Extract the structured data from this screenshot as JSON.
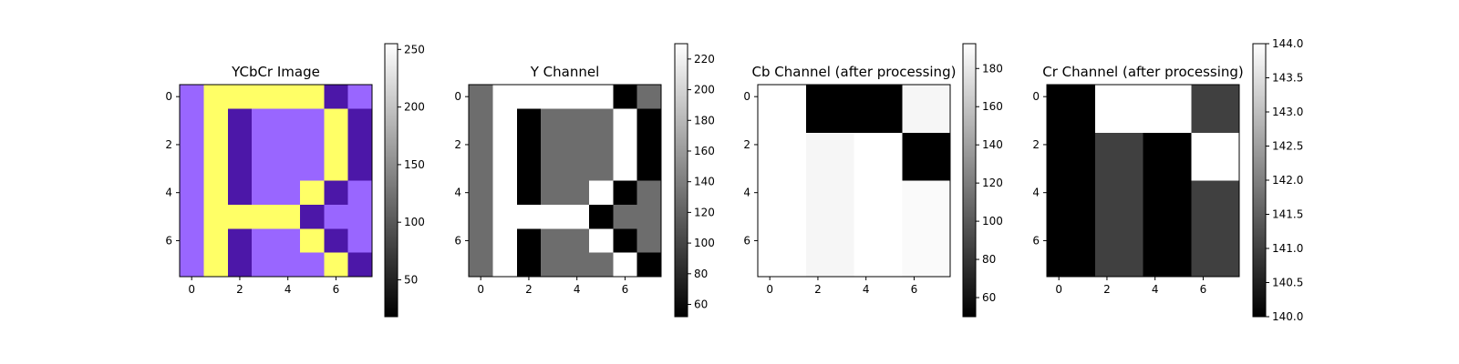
{
  "chart_data": [
    {
      "type": "heatmap",
      "title": "YCbCr Image",
      "colormap": "rgb",
      "x_ticks": [
        0,
        2,
        4,
        6
      ],
      "y_ticks": [
        0,
        2,
        4,
        6
      ],
      "colors": {
        "lavender": "#9966ff",
        "yellow": "#ffff66",
        "indigo": "#4c17a8"
      },
      "matrix": [
        [
          "lavender",
          "yellow",
          "yellow",
          "yellow",
          "yellow",
          "yellow",
          "indigo",
          "lavender"
        ],
        [
          "lavender",
          "yellow",
          "indigo",
          "lavender",
          "lavender",
          "lavender",
          "yellow",
          "indigo"
        ],
        [
          "lavender",
          "yellow",
          "indigo",
          "lavender",
          "lavender",
          "lavender",
          "yellow",
          "indigo"
        ],
        [
          "lavender",
          "yellow",
          "indigo",
          "lavender",
          "lavender",
          "lavender",
          "yellow",
          "indigo"
        ],
        [
          "lavender",
          "yellow",
          "indigo",
          "lavender",
          "lavender",
          "yellow",
          "indigo",
          "lavender"
        ],
        [
          "lavender",
          "yellow",
          "yellow",
          "yellow",
          "yellow",
          "indigo",
          "lavender",
          "lavender"
        ],
        [
          "lavender",
          "yellow",
          "indigo",
          "lavender",
          "lavender",
          "yellow",
          "indigo",
          "lavender"
        ],
        [
          "lavender",
          "yellow",
          "indigo",
          "lavender",
          "lavender",
          "lavender",
          "yellow",
          "indigo"
        ]
      ],
      "colorbar": {
        "range": [
          18,
          255
        ],
        "ticks": [
          50,
          100,
          150,
          200,
          250
        ]
      }
    },
    {
      "type": "heatmap",
      "title": "Y Channel",
      "colormap": "gray",
      "x_ticks": [
        0,
        2,
        4,
        6
      ],
      "y_ticks": [
        0,
        2,
        4,
        6
      ],
      "vmin": 52,
      "vmax": 230,
      "matrix": [
        [
          128,
          230,
          230,
          230,
          230,
          230,
          52,
          128
        ],
        [
          128,
          230,
          52,
          128,
          128,
          128,
          230,
          52
        ],
        [
          128,
          230,
          52,
          128,
          128,
          128,
          230,
          52
        ],
        [
          128,
          230,
          52,
          128,
          128,
          128,
          230,
          52
        ],
        [
          128,
          230,
          52,
          128,
          128,
          230,
          52,
          128
        ],
        [
          128,
          230,
          230,
          230,
          230,
          52,
          128,
          128
        ],
        [
          128,
          230,
          52,
          128,
          128,
          230,
          52,
          128
        ],
        [
          128,
          230,
          52,
          128,
          128,
          128,
          230,
          52
        ]
      ],
      "colorbar": {
        "range": [
          52,
          230
        ],
        "ticks": [
          60,
          80,
          100,
          120,
          140,
          160,
          180,
          200,
          220
        ]
      }
    },
    {
      "type": "heatmap",
      "title": "Cb Channel (after processing)",
      "colormap": "gray",
      "x_ticks": [
        0,
        2,
        4,
        6
      ],
      "y_ticks": [
        0,
        2,
        4,
        6
      ],
      "vmin": 50,
      "vmax": 193,
      "matrix": [
        [
          193,
          193,
          50,
          50,
          50,
          50,
          188,
          188
        ],
        [
          193,
          193,
          50,
          50,
          50,
          50,
          188,
          188
        ],
        [
          193,
          193,
          188,
          188,
          193,
          193,
          50,
          50
        ],
        [
          193,
          193,
          188,
          188,
          193,
          193,
          50,
          50
        ],
        [
          193,
          193,
          188,
          188,
          193,
          193,
          190,
          190
        ],
        [
          193,
          193,
          188,
          188,
          193,
          193,
          190,
          190
        ],
        [
          193,
          193,
          188,
          188,
          193,
          193,
          190,
          190
        ],
        [
          193,
          193,
          188,
          188,
          193,
          193,
          190,
          190
        ]
      ],
      "colorbar": {
        "range": [
          50,
          193
        ],
        "ticks": [
          60,
          80,
          100,
          120,
          140,
          160,
          180
        ]
      }
    },
    {
      "type": "heatmap",
      "title": "Cr Channel (after processing)",
      "colormap": "gray",
      "x_ticks": [
        0,
        2,
        4,
        6
      ],
      "y_ticks": [
        0,
        2,
        4,
        6
      ],
      "vmin": 140,
      "vmax": 144,
      "matrix": [
        [
          140,
          140,
          144,
          144,
          144,
          144,
          141,
          141
        ],
        [
          140,
          140,
          144,
          144,
          144,
          144,
          141,
          141
        ],
        [
          140,
          140,
          141,
          141,
          140,
          140,
          144,
          144
        ],
        [
          140,
          140,
          141,
          141,
          140,
          140,
          144,
          144
        ],
        [
          140,
          140,
          141,
          141,
          140,
          140,
          141,
          141
        ],
        [
          140,
          140,
          141,
          141,
          140,
          140,
          141,
          141
        ],
        [
          140,
          140,
          141,
          141,
          140,
          140,
          141,
          141
        ],
        [
          140,
          140,
          141,
          141,
          140,
          140,
          141,
          141
        ]
      ],
      "colorbar": {
        "range": [
          140,
          144
        ],
        "ticks": [
          "140.0",
          "140.5",
          "141.0",
          "141.5",
          "142.0",
          "142.5",
          "143.0",
          "143.5",
          "144.0"
        ]
      }
    }
  ]
}
